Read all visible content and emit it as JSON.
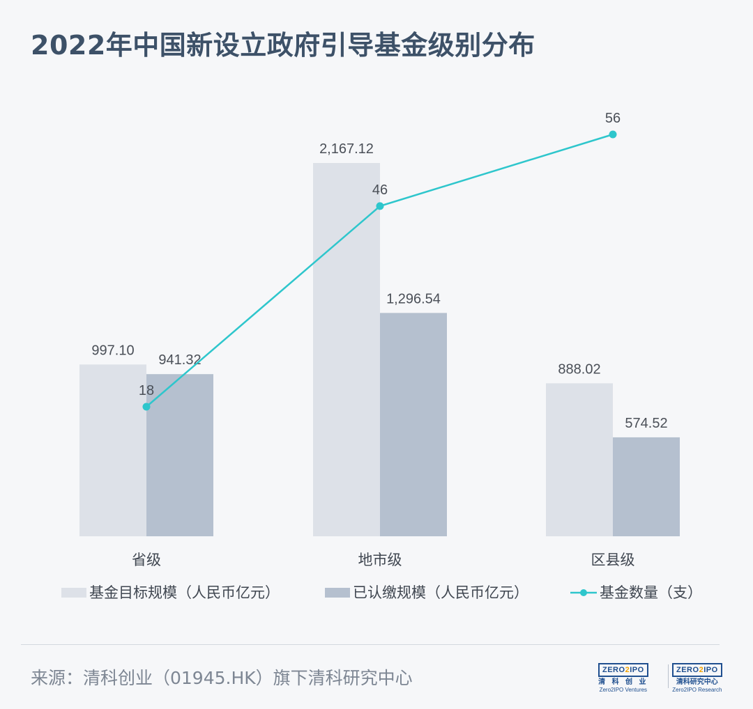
{
  "title": "2022年中国新设立政府引导基金级别分布",
  "chart_data": {
    "type": "bar",
    "categories": [
      "省级",
      "地市级",
      "区县级"
    ],
    "series": [
      {
        "name": "基金目标规模（人民币亿元）",
        "type": "bar",
        "values": [
          997.1,
          2167.12,
          888.02
        ],
        "labels": [
          "997.10",
          "2,167.12",
          "888.02"
        ],
        "color": "#dde1e8"
      },
      {
        "name": "已认缴规模（人民币亿元）",
        "type": "bar",
        "values": [
          941.32,
          1296.54,
          574.52
        ],
        "labels": [
          "941.32",
          "1,296.54",
          "574.52"
        ],
        "color": "#b5c0cf"
      },
      {
        "name": "基金数量（支）",
        "type": "line",
        "values": [
          18,
          46,
          56
        ],
        "labels": [
          "18",
          "46",
          "56"
        ],
        "color": "#2ec6cc"
      }
    ],
    "legend_position": "bottom",
    "grid": false
  },
  "source": "来源：清科创业（01945.HK）旗下清科研究中心",
  "logos": [
    {
      "mark_left": "ZERO",
      "mark_mid": "2",
      "mark_right": "IPO",
      "cn": "清 科 创 业",
      "en": "Zero2IPO Ventures"
    },
    {
      "mark_left": "ZERO",
      "mark_mid": "2",
      "mark_right": "IPO",
      "cn": "清科研究中心",
      "en": "Zero2IPO Research"
    }
  ]
}
